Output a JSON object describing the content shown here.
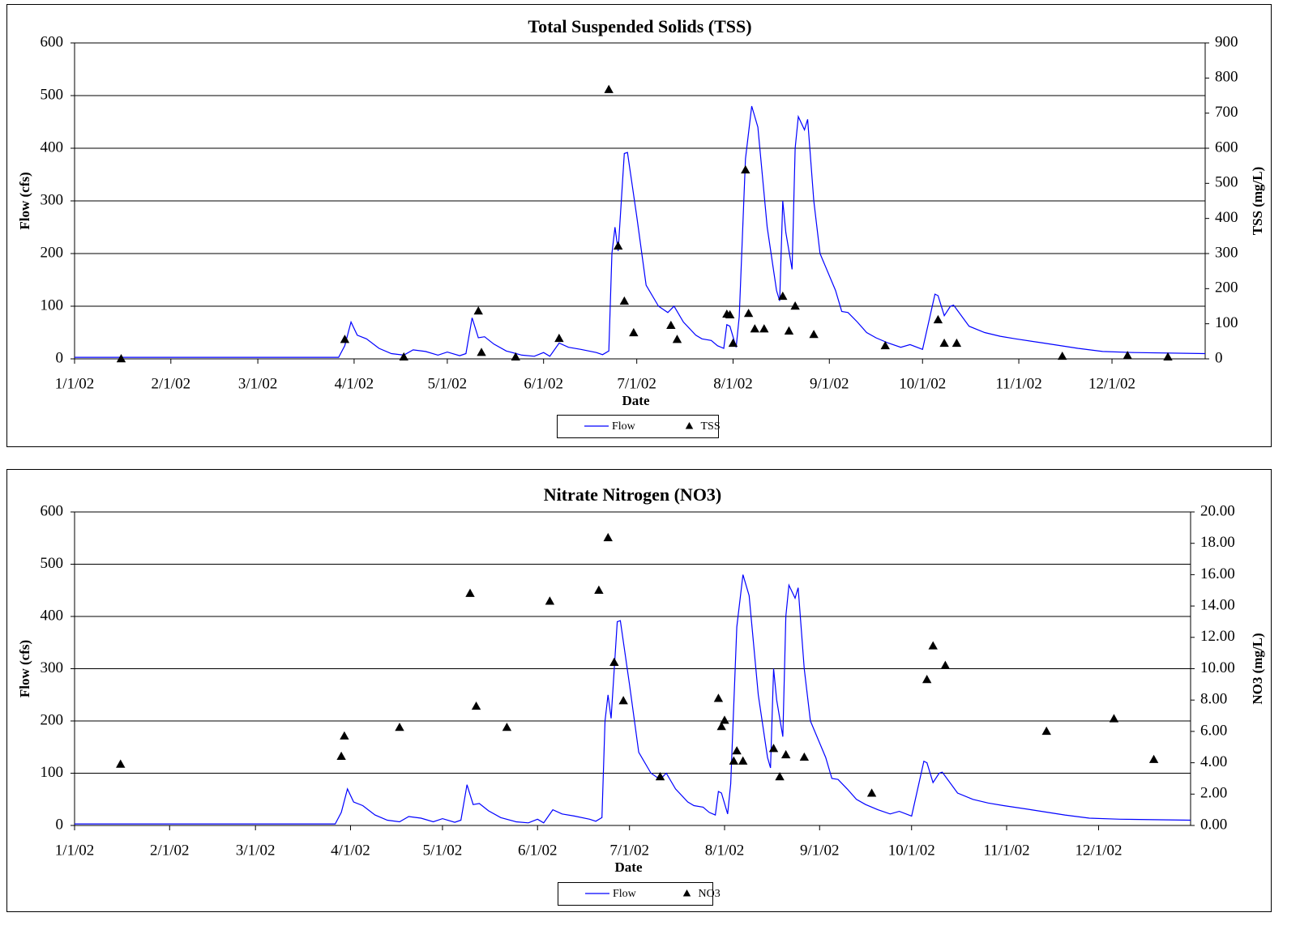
{
  "chart_data": [
    {
      "type": "combo",
      "title": "Total Suspended Solids (TSS)",
      "x_label": "Date",
      "y_label": "Flow (cfs)",
      "y2_label": "TSS (mg/L)",
      "xlim": [
        "2002-01-01",
        "2002-12-31"
      ],
      "xticks": [
        {
          "value": "2002-01-01",
          "label": "1/1/02"
        },
        {
          "value": "2002-02-01",
          "label": "2/1/02"
        },
        {
          "value": "2002-03-01",
          "label": "3/1/02"
        },
        {
          "value": "2002-04-01",
          "label": "4/1/02"
        },
        {
          "value": "2002-05-01",
          "label": "5/1/02"
        },
        {
          "value": "2002-06-01",
          "label": "6/1/02"
        },
        {
          "value": "2002-07-01",
          "label": "7/1/02"
        },
        {
          "value": "2002-08-01",
          "label": "8/1/02"
        },
        {
          "value": "2002-09-01",
          "label": "9/1/02"
        },
        {
          "value": "2002-10-01",
          "label": "10/1/02"
        },
        {
          "value": "2002-11-01",
          "label": "11/1/02"
        },
        {
          "value": "2002-12-01",
          "label": "12/1/02"
        }
      ],
      "ylim": [
        0,
        600
      ],
      "yticks": [
        0,
        100,
        200,
        300,
        400,
        500,
        600
      ],
      "y2lim": [
        0,
        900
      ],
      "y2ticks": [
        0,
        100,
        200,
        300,
        400,
        500,
        600,
        700,
        800,
        900
      ],
      "grid": true,
      "legend": "bottom",
      "series": [
        {
          "name": "Flow",
          "type": "line",
          "color": "#0000ff",
          "x": [
            "2002-01-01",
            "2002-03-27",
            "2002-03-29",
            "2002-03-31",
            "2002-04-02",
            "2002-04-05",
            "2002-04-09",
            "2002-04-13",
            "2002-04-17",
            "2002-04-20",
            "2002-04-24",
            "2002-04-28",
            "2002-05-01",
            "2002-05-05",
            "2002-05-07",
            "2002-05-09",
            "2002-05-11",
            "2002-05-13",
            "2002-05-16",
            "2002-05-20",
            "2002-05-25",
            "2002-05-29",
            "2002-06-01",
            "2002-06-03",
            "2002-06-06",
            "2002-06-09",
            "2002-06-13",
            "2002-06-18",
            "2002-06-20",
            "2002-06-22",
            "2002-06-23",
            "2002-06-24",
            "2002-06-25",
            "2002-06-27",
            "2002-06-28",
            "2002-07-01",
            "2002-07-04",
            "2002-07-08",
            "2002-07-11",
            "2002-07-13",
            "2002-07-16",
            "2002-07-20",
            "2002-07-22",
            "2002-07-25",
            "2002-07-27",
            "2002-07-29",
            "2002-07-30",
            "2002-07-31",
            "2002-08-02",
            "2002-08-03",
            "2002-08-05",
            "2002-08-07",
            "2002-08-09",
            "2002-08-12",
            "2002-08-15",
            "2002-08-16",
            "2002-08-17",
            "2002-08-18",
            "2002-08-20",
            "2002-08-21",
            "2002-08-22",
            "2002-08-24",
            "2002-08-25",
            "2002-08-27",
            "2002-08-29",
            "2002-09-03",
            "2002-09-05",
            "2002-09-07",
            "2002-09-10",
            "2002-09-13",
            "2002-09-16",
            "2002-09-20",
            "2002-09-24",
            "2002-09-27",
            "2002-10-01",
            "2002-10-05",
            "2002-10-06",
            "2002-10-08",
            "2002-10-10",
            "2002-10-11",
            "2002-10-16",
            "2002-10-21",
            "2002-10-26",
            "2002-10-31",
            "2002-11-09",
            "2002-11-20",
            "2002-11-28",
            "2002-12-08",
            "2002-12-31"
          ],
          "values": [
            3,
            3,
            25,
            70,
            45,
            38,
            20,
            10,
            7,
            17,
            14,
            7,
            13,
            6,
            10,
            78,
            40,
            42,
            28,
            15,
            7,
            5,
            12,
            5,
            30,
            22,
            18,
            12,
            8,
            15,
            200,
            250,
            205,
            390,
            392,
            270,
            140,
            100,
            88,
            100,
            70,
            45,
            38,
            35,
            25,
            20,
            65,
            62,
            22,
            80,
            380,
            480,
            440,
            250,
            130,
            110,
            300,
            240,
            170,
            400,
            460,
            435,
            455,
            300,
            200,
            130,
            90,
            88,
            70,
            50,
            40,
            30,
            22,
            27,
            18,
            123,
            120,
            82,
            100,
            102,
            62,
            50,
            43,
            38,
            30,
            20,
            14,
            12,
            10
          ]
        },
        {
          "name": "TSS",
          "type": "scatter",
          "axis": "y2",
          "color": "#000000",
          "x": [
            "2002-01-16",
            "2002-03-29",
            "2002-04-17",
            "2002-05-11",
            "2002-05-12",
            "2002-05-23",
            "2002-06-06",
            "2002-06-22",
            "2002-06-25",
            "2002-06-27",
            "2002-06-30",
            "2002-07-12",
            "2002-07-14",
            "2002-07-30",
            "2002-07-31",
            "2002-08-01",
            "2002-08-05",
            "2002-08-06",
            "2002-08-08",
            "2002-08-11",
            "2002-08-17",
            "2002-08-19",
            "2002-08-21",
            "2002-08-27",
            "2002-09-19",
            "2002-10-06",
            "2002-10-08",
            "2002-10-12",
            "2002-11-15",
            "2002-12-06",
            "2002-12-19"
          ],
          "values": [
            0,
            55,
            5,
            136,
            18,
            5,
            58,
            767,
            321,
            164,
            74,
            95,
            55,
            127,
            125,
            44,
            538,
            129,
            85,
            85,
            178,
            79,
            150,
            69,
            37,
            111,
            44,
            44,
            7,
            9,
            5
          ]
        }
      ]
    },
    {
      "type": "combo",
      "title": "Nitrate Nitrogen (NO3)",
      "x_label": "Date",
      "y_label": "Flow (cfs)",
      "y2_label": "NO3 (mg/L)",
      "xlim": [
        "2002-01-01",
        "2002-12-31"
      ],
      "xticks": [
        {
          "value": "2002-01-01",
          "label": "1/1/02"
        },
        {
          "value": "2002-02-01",
          "label": "2/1/02"
        },
        {
          "value": "2002-03-01",
          "label": "3/1/02"
        },
        {
          "value": "2002-04-01",
          "label": "4/1/02"
        },
        {
          "value": "2002-05-01",
          "label": "5/1/02"
        },
        {
          "value": "2002-06-01",
          "label": "6/1/02"
        },
        {
          "value": "2002-07-01",
          "label": "7/1/02"
        },
        {
          "value": "2002-08-01",
          "label": "8/1/02"
        },
        {
          "value": "2002-09-01",
          "label": "9/1/02"
        },
        {
          "value": "2002-10-01",
          "label": "10/1/02"
        },
        {
          "value": "2002-11-01",
          "label": "11/1/02"
        },
        {
          "value": "2002-12-01",
          "label": "12/1/02"
        }
      ],
      "ylim": [
        0,
        600
      ],
      "yticks": [
        0,
        100,
        200,
        300,
        400,
        500,
        600
      ],
      "y2lim": [
        0,
        20
      ],
      "y2ticks": [
        {
          "value": 0,
          "label": "0.00"
        },
        {
          "value": 2,
          "label": "2.00"
        },
        {
          "value": 4,
          "label": "4.00"
        },
        {
          "value": 6,
          "label": "6.00"
        },
        {
          "value": 8,
          "label": "8.00"
        },
        {
          "value": 10,
          "label": "10.00"
        },
        {
          "value": 12,
          "label": "12.00"
        },
        {
          "value": 14,
          "label": "14.00"
        },
        {
          "value": 16,
          "label": "16.00"
        },
        {
          "value": 18,
          "label": "18.00"
        },
        {
          "value": 20,
          "label": "20.00"
        }
      ],
      "grid": true,
      "legend": "bottom",
      "series": [
        {
          "name": "Flow",
          "type": "line",
          "color": "#0000ff",
          "x": [
            "2002-01-01",
            "2002-03-27",
            "2002-03-29",
            "2002-03-31",
            "2002-04-02",
            "2002-04-05",
            "2002-04-09",
            "2002-04-13",
            "2002-04-17",
            "2002-04-20",
            "2002-04-24",
            "2002-04-28",
            "2002-05-01",
            "2002-05-05",
            "2002-05-07",
            "2002-05-09",
            "2002-05-11",
            "2002-05-13",
            "2002-05-16",
            "2002-05-20",
            "2002-05-25",
            "2002-05-29",
            "2002-06-01",
            "2002-06-03",
            "2002-06-06",
            "2002-06-09",
            "2002-06-13",
            "2002-06-18",
            "2002-06-20",
            "2002-06-22",
            "2002-06-23",
            "2002-06-24",
            "2002-06-25",
            "2002-06-27",
            "2002-06-28",
            "2002-07-01",
            "2002-07-04",
            "2002-07-08",
            "2002-07-11",
            "2002-07-13",
            "2002-07-16",
            "2002-07-20",
            "2002-07-22",
            "2002-07-25",
            "2002-07-27",
            "2002-07-29",
            "2002-07-30",
            "2002-07-31",
            "2002-08-02",
            "2002-08-03",
            "2002-08-05",
            "2002-08-07",
            "2002-08-09",
            "2002-08-12",
            "2002-08-15",
            "2002-08-16",
            "2002-08-17",
            "2002-08-18",
            "2002-08-20",
            "2002-08-21",
            "2002-08-22",
            "2002-08-24",
            "2002-08-25",
            "2002-08-27",
            "2002-08-29",
            "2002-09-03",
            "2002-09-05",
            "2002-09-07",
            "2002-09-10",
            "2002-09-13",
            "2002-09-16",
            "2002-09-20",
            "2002-09-24",
            "2002-09-27",
            "2002-10-01",
            "2002-10-05",
            "2002-10-06",
            "2002-10-08",
            "2002-10-10",
            "2002-10-11",
            "2002-10-16",
            "2002-10-21",
            "2002-10-26",
            "2002-10-31",
            "2002-11-09",
            "2002-11-20",
            "2002-11-28",
            "2002-12-08",
            "2002-12-31"
          ],
          "values": [
            3,
            3,
            25,
            70,
            45,
            38,
            20,
            10,
            7,
            17,
            14,
            7,
            13,
            6,
            10,
            78,
            40,
            42,
            28,
            15,
            7,
            5,
            12,
            5,
            30,
            22,
            18,
            12,
            8,
            15,
            200,
            250,
            205,
            390,
            392,
            270,
            140,
            100,
            88,
            100,
            70,
            45,
            38,
            35,
            25,
            20,
            65,
            62,
            22,
            80,
            380,
            480,
            440,
            250,
            130,
            110,
            300,
            240,
            170,
            400,
            460,
            435,
            455,
            300,
            200,
            130,
            90,
            88,
            70,
            50,
            40,
            30,
            22,
            27,
            18,
            123,
            120,
            82,
            100,
            102,
            62,
            50,
            43,
            38,
            30,
            20,
            14,
            12,
            10
          ]
        },
        {
          "name": "NO3",
          "type": "scatter",
          "axis": "y2",
          "color": "#000000",
          "x": [
            "2002-01-16",
            "2002-03-29",
            "2002-03-30",
            "2002-04-17",
            "2002-05-10",
            "2002-05-12",
            "2002-05-22",
            "2002-06-05",
            "2002-06-21",
            "2002-06-24",
            "2002-06-26",
            "2002-06-29",
            "2002-07-11",
            "2002-07-30",
            "2002-07-31",
            "2002-08-01",
            "2002-08-04",
            "2002-08-05",
            "2002-08-07",
            "2002-08-17",
            "2002-08-19",
            "2002-08-21",
            "2002-08-27",
            "2002-09-18",
            "2002-10-06",
            "2002-10-08",
            "2002-10-12",
            "2002-11-14",
            "2002-12-06",
            "2002-12-19"
          ],
          "values": [
            3.9,
            4.4,
            5.7,
            6.25,
            14.8,
            7.6,
            6.25,
            14.3,
            15.0,
            18.35,
            10.4,
            7.95,
            3.1,
            8.1,
            6.3,
            6.7,
            4.1,
            4.75,
            4.1,
            4.9,
            3.1,
            4.5,
            4.35,
            2.05,
            9.3,
            11.45,
            10.2,
            6.0,
            6.8,
            4.2
          ]
        }
      ]
    }
  ]
}
